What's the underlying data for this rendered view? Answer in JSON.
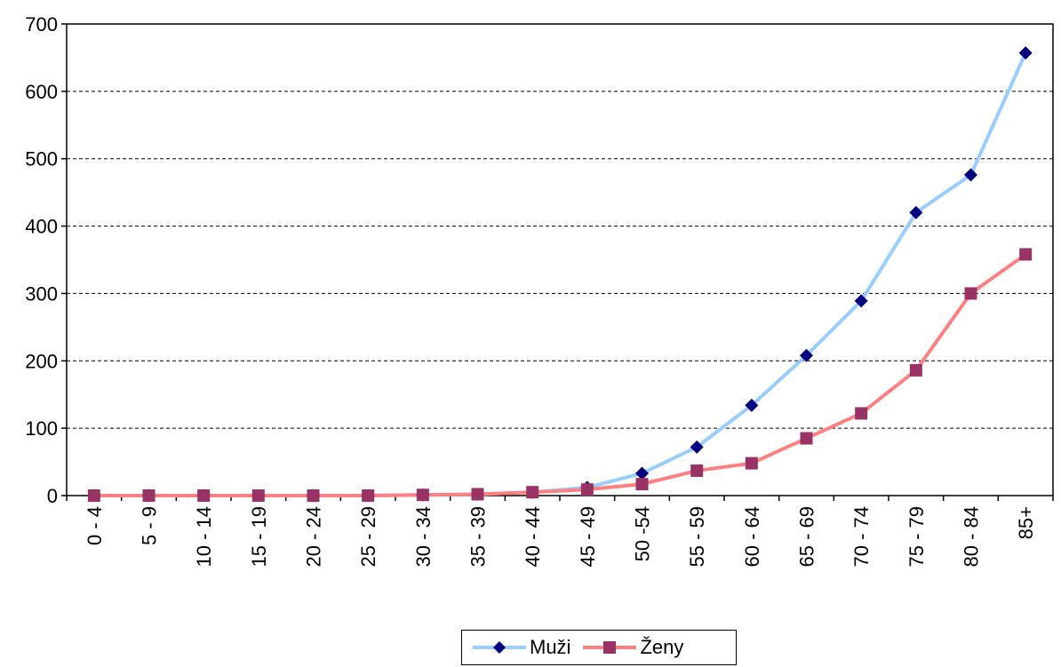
{
  "chart_data": {
    "type": "line",
    "categories": [
      "0 - 4",
      "5 - 9",
      "10 - 14",
      "15 - 19",
      "20 - 24",
      "25 - 29",
      "30 - 34",
      "35 - 39",
      "40 - 44",
      "45 - 49",
      "50 -54",
      "55 - 59",
      "60 - 64",
      "65 - 69",
      "70 - 74",
      "75 - 79",
      "80 - 84",
      "85+"
    ],
    "series": [
      {
        "name": "Muži",
        "color": "#99CCFF",
        "marker_color": "#000080",
        "marker": "diamond",
        "values": [
          0,
          0,
          0,
          0,
          0,
          0,
          1,
          2,
          5,
          12,
          33,
          72,
          134,
          208,
          289,
          420,
          476,
          657
        ]
      },
      {
        "name": "Ženy",
        "color": "#FF8080",
        "marker_color": "#993366",
        "marker": "square",
        "values": [
          0,
          0,
          0,
          0,
          0,
          0,
          1,
          2,
          5,
          9,
          17,
          37,
          48,
          85,
          122,
          186,
          300,
          358
        ]
      }
    ],
    "y_ticks": [
      "0",
      "100",
      "200",
      "300",
      "400",
      "500",
      "600",
      "700"
    ],
    "ylim": [
      0,
      700
    ],
    "grid": "horizontal dashed",
    "legend_position": "bottom"
  }
}
